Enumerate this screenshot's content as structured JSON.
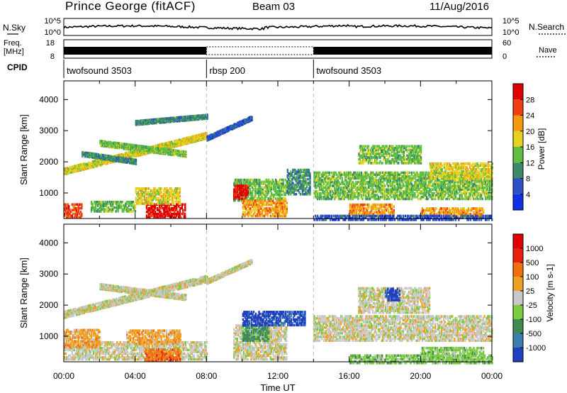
{
  "header": {
    "title": "Prince George (fitACF)",
    "beam": "Beam 03",
    "date": "11/Aug/2016"
  },
  "noise_panel": {
    "left_label": "N.Sky",
    "right_label": "N.Search",
    "left_ticks": [
      "10^5",
      "10^0"
    ],
    "right_ticks": [
      "10^5",
      "10^0"
    ]
  },
  "freq_panel": {
    "left_label_top": "Freq.",
    "left_label_bottom": "[MHz]",
    "right_label": "Nave",
    "left_ticks": [
      "18",
      "8"
    ],
    "right_ticks": [
      "60",
      "0"
    ]
  },
  "cpid_panel": {
    "label": "CPID",
    "segments": [
      {
        "name": "twofsound 3503",
        "start": 0,
        "end": 8.0
      },
      {
        "name": "rbsp 200",
        "start": 8.0,
        "end": 14.0
      },
      {
        "name": "twofsound 3503",
        "start": 14.0,
        "end": 24.0
      }
    ]
  },
  "chart_data": [
    {
      "type": "heatmap",
      "name": "power",
      "xlabel": "",
      "ylabel": "Slant Range [km]",
      "xlim": [
        0,
        24
      ],
      "ylim": [
        180,
        4600
      ],
      "yticks": [
        1000,
        2000,
        3000,
        4000
      ],
      "colorbar": {
        "label": "Power [dB]",
        "ticks": [
          "4",
          "8",
          "12",
          "16",
          "20",
          "24",
          "28"
        ],
        "colors": [
          "#1030e8",
          "#2f4fc8",
          "#3a8a6a",
          "#5fbf40",
          "#e6d020",
          "#f59a10",
          "#ee4010",
          "#e00000"
        ]
      },
      "features": [
        {
          "kind": "band",
          "from": [
            0.0,
            1750
          ],
          "to": [
            8.0,
            2900
          ],
          "level": 4,
          "width": 210
        },
        {
          "kind": "band",
          "from": [
            2.0,
            2650
          ],
          "to": [
            6.8,
            2300
          ],
          "level": 3,
          "width": 180
        },
        {
          "kind": "band",
          "from": [
            1.0,
            2300
          ],
          "to": [
            4.0,
            2050
          ],
          "level": 2,
          "width": 150
        },
        {
          "kind": "band",
          "from": [
            4.0,
            3300
          ],
          "to": [
            8.0,
            3500
          ],
          "level": 2,
          "width": 140
        },
        {
          "kind": "band",
          "from": [
            8.0,
            2800
          ],
          "to": [
            10.5,
            3450
          ],
          "level": 1,
          "width": 140
        },
        {
          "kind": "blob",
          "x": [
            4.6,
            6.8
          ],
          "y": [
            250,
            700
          ],
          "level": 7
        },
        {
          "kind": "blob",
          "x": [
            4.0,
            6.5
          ],
          "y": [
            700,
            1200
          ],
          "level": 4
        },
        {
          "kind": "blob",
          "x": [
            1.5,
            4.0
          ],
          "y": [
            450,
            800
          ],
          "level": 3
        },
        {
          "kind": "blob",
          "x": [
            0.0,
            1.0
          ],
          "y": [
            250,
            700
          ],
          "level": 6
        },
        {
          "kind": "blob",
          "x": [
            9.5,
            12.5
          ],
          "y": [
            800,
            1500
          ],
          "level": 3
        },
        {
          "kind": "blob",
          "x": [
            9.5,
            10.3
          ],
          "y": [
            850,
            1300
          ],
          "level": 7
        },
        {
          "kind": "blob",
          "x": [
            10.0,
            12.5
          ],
          "y": [
            300,
            800
          ],
          "level": 5
        },
        {
          "kind": "blob",
          "x": [
            12.5,
            13.8
          ],
          "y": [
            1000,
            1800
          ],
          "level": 2
        },
        {
          "kind": "blob",
          "x": [
            14.0,
            24.0
          ],
          "y": [
            850,
            1700
          ],
          "level": 3
        },
        {
          "kind": "blob",
          "x": [
            16.0,
            18.5
          ],
          "y": [
            300,
            700
          ],
          "level": 5
        },
        {
          "kind": "blob",
          "x": [
            20.0,
            23.5
          ],
          "y": [
            300,
            600
          ],
          "level": 5
        },
        {
          "kind": "blob",
          "x": [
            16.5,
            20.0
          ],
          "y": [
            2000,
            2550
          ],
          "level": 3
        },
        {
          "kind": "blob",
          "x": [
            20.5,
            24.0
          ],
          "y": [
            1500,
            2000
          ],
          "level": 4
        },
        {
          "kind": "blob",
          "x": [
            14.0,
            24.0
          ],
          "y": [
            180,
            350
          ],
          "level": 1
        }
      ]
    },
    {
      "type": "heatmap",
      "name": "velocity",
      "xlabel": "Time UT",
      "ylabel": "Slant Range [km]",
      "xlim": [
        0,
        24
      ],
      "ylim": [
        180,
        4600
      ],
      "yticks": [
        1000,
        2000,
        3000,
        4000
      ],
      "xticks": [
        "00:00",
        "04:00",
        "08:00",
        "12:00",
        "16:00",
        "20:00",
        "00:00"
      ],
      "colorbar": {
        "label": "Velocity [m s-1]",
        "ticks": [
          "1000",
          "500",
          "100",
          "25",
          "-25",
          "-100",
          "-500",
          "-1000"
        ],
        "colors": [
          "#2040c0",
          "#3a7fb0",
          "#3e8a50",
          "#7ccc40",
          "#c8c8c8",
          "#f0a020",
          "#f07010",
          "#e82010",
          "#e00000"
        ]
      },
      "features": [
        {
          "kind": "band",
          "from": [
            0.0,
            1750
          ],
          "to": [
            8.0,
            2900
          ],
          "level": 4,
          "width": 230
        },
        {
          "kind": "band",
          "from": [
            2.0,
            2650
          ],
          "to": [
            6.8,
            2300
          ],
          "level": 4,
          "width": 180
        },
        {
          "kind": "band",
          "from": [
            8.0,
            2800
          ],
          "to": [
            10.5,
            3450
          ],
          "level": 4,
          "width": 140
        },
        {
          "kind": "blob",
          "x": [
            0.0,
            8.0
          ],
          "y": [
            300,
            900
          ],
          "level": 4
        },
        {
          "kind": "blob",
          "x": [
            3.5,
            6.5
          ],
          "y": [
            800,
            1250
          ],
          "level": 5
        },
        {
          "kind": "blob",
          "x": [
            0.0,
            2.0
          ],
          "y": [
            700,
            1300
          ],
          "level": 5
        },
        {
          "kind": "blob",
          "x": [
            9.5,
            12.5
          ],
          "y": [
            300,
            1400
          ],
          "level": 4
        },
        {
          "kind": "blob",
          "x": [
            10.0,
            11.5
          ],
          "y": [
            900,
            1400
          ],
          "level": 2
        },
        {
          "kind": "blob",
          "x": [
            10.0,
            13.5
          ],
          "y": [
            1400,
            1850
          ],
          "level": 0
        },
        {
          "kind": "blob",
          "x": [
            14.0,
            24.0
          ],
          "y": [
            900,
            1700
          ],
          "level": 4
        },
        {
          "kind": "blob",
          "x": [
            16.5,
            20.5
          ],
          "y": [
            1800,
            2600
          ],
          "level": 4
        },
        {
          "kind": "blob",
          "x": [
            18.0,
            18.8
          ],
          "y": [
            2200,
            2600
          ],
          "level": 0
        },
        {
          "kind": "blob",
          "x": [
            16.0,
            24.0
          ],
          "y": [
            180,
            450
          ],
          "level": 3
        },
        {
          "kind": "blob",
          "x": [
            20.0,
            23.5
          ],
          "y": [
            300,
            700
          ],
          "level": 3
        },
        {
          "kind": "blob",
          "x": [
            4.5,
            6.5
          ],
          "y": [
            250,
            650
          ],
          "level": 6
        }
      ]
    }
  ]
}
